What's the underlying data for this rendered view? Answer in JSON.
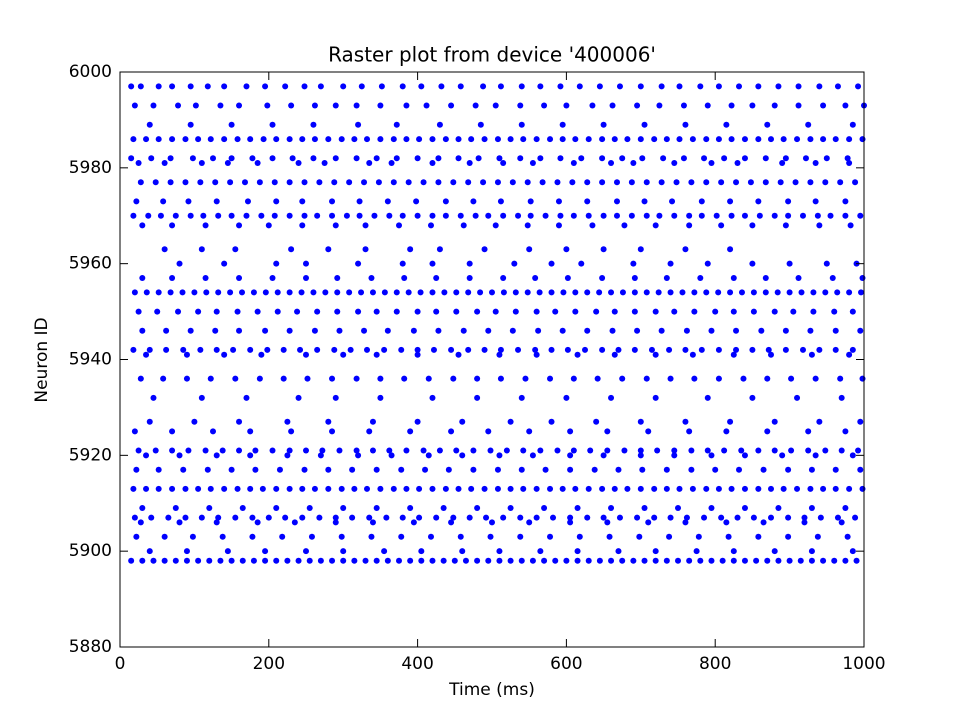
{
  "chart_data": {
    "type": "raster",
    "title": "Raster plot from device '400006'",
    "x_label": "Time (ms)",
    "y_label": "Neuron ID",
    "xlim": [
      0,
      1000
    ],
    "ylim": [
      5880,
      6000
    ],
    "xticks": [
      0,
      200,
      400,
      600,
      800,
      1000
    ],
    "yticks": [
      5880,
      5900,
      5920,
      5940,
      5960,
      5980,
      6000
    ],
    "color": "#0000ff",
    "rows": [
      {
        "neuron": 5997,
        "times": [
          15,
          28,
          52,
          70,
          95,
          118,
          140,
          170,
          195,
          222,
          248,
          270,
          300,
          325,
          352,
          380,
          405,
          432,
          458,
          488,
          512,
          540,
          565,
          592,
          618,
          645,
          672,
          700,
          728,
          752,
          780,
          805,
          832,
          858,
          885,
          912,
          940,
          965,
          992
        ]
      },
      {
        "neuron": 5993,
        "times": [
          20,
          45,
          78,
          102,
          135,
          160,
          198,
          230,
          262,
          290,
          318,
          350,
          385,
          412,
          445,
          478,
          505,
          538,
          570,
          600,
          635,
          662,
          695,
          725,
          758,
          790,
          822,
          850,
          880,
          912,
          945,
          975,
          1000
        ]
      },
      {
        "neuron": 5989,
        "times": [
          40,
          95,
          150,
          205,
          260,
          320,
          372,
          430,
          485,
          540,
          595,
          650,
          705,
          760,
          815,
          870,
          925,
          985
        ]
      },
      {
        "neuron": 5986,
        "times": [
          18,
          35,
          52,
          70,
          88,
          105,
          122,
          140,
          158,
          175,
          193,
          210,
          228,
          245,
          262,
          280,
          298,
          315,
          332,
          350,
          368,
          385,
          402,
          420,
          438,
          455,
          472,
          490,
          508,
          525,
          542,
          560,
          578,
          595,
          612,
          630,
          648,
          665,
          682,
          700,
          718,
          735,
          752,
          770,
          788,
          805,
          822,
          840,
          858,
          875,
          892,
          910,
          928,
          945,
          962,
          980,
          998
        ]
      },
      {
        "neuron": 5982,
        "times": [
          15,
          42,
          68,
          98,
          125,
          150,
          178,
          205,
          232,
          260,
          290,
          318,
          345,
          372,
          400,
          428,
          455,
          482,
          510,
          538,
          565,
          592,
          620,
          648,
          675,
          702,
          730,
          758,
          785,
          812,
          840,
          868,
          895,
          922,
          950,
          978
        ]
      },
      {
        "neuron": 5981,
        "times": [
          25,
          60,
          110,
          145,
          185,
          240,
          275,
          335,
          365,
          420,
          470,
          515,
          555,
          610,
          660,
          690,
          745,
          795,
          830,
          890,
          935,
          980
        ]
      },
      {
        "neuron": 5977,
        "times": [
          28,
          48,
          68,
          88,
          108,
          128,
          148,
          168,
          188,
          208,
          228,
          248,
          268,
          288,
          308,
          328,
          348,
          368,
          388,
          408,
          428,
          448,
          468,
          488,
          508,
          528,
          548,
          568,
          588,
          608,
          628,
          648,
          668,
          688,
          708,
          728,
          748,
          768,
          788,
          808,
          828,
          848,
          868,
          888,
          908,
          928,
          948,
          968,
          988
        ]
      },
      {
        "neuron": 5973,
        "times": [
          22,
          58,
          92,
          130,
          172,
          210,
          245,
          285,
          322,
          360,
          398,
          438,
          475,
          512,
          552,
          590,
          628,
          668,
          705,
          742,
          782,
          820,
          858,
          898,
          935,
          975
        ]
      },
      {
        "neuron": 5970,
        "times": [
          18,
          38,
          55,
          75,
          95,
          112,
          132,
          150,
          170,
          190,
          208,
          228,
          248,
          265,
          285,
          305,
          322,
          342,
          362,
          380,
          400,
          420,
          438,
          458,
          478,
          495,
          515,
          535,
          552,
          572,
          592,
          610,
          630,
          650,
          668,
          688,
          708,
          725,
          745,
          765,
          782,
          802,
          822,
          840,
          860,
          880,
          898,
          918,
          938,
          955,
          975,
          995
        ]
      },
      {
        "neuron": 5968,
        "times": [
          30,
          70,
          115,
          160,
          200,
          245,
          290,
          330,
          375,
          418,
          462,
          505,
          548,
          590,
          635,
          678,
          720,
          765,
          808,
          850,
          895,
          940,
          982
        ]
      },
      {
        "neuron": 5963,
        "times": [
          60,
          110,
          155,
          230,
          280,
          330,
          390,
          430,
          490,
          550,
          600,
          650,
          700,
          760,
          820
        ]
      },
      {
        "neuron": 5960,
        "times": [
          80,
          140,
          210,
          250,
          320,
          380,
          420,
          470,
          530,
          580,
          620,
          690,
          740,
          790,
          850,
          900,
          950,
          990
        ]
      },
      {
        "neuron": 5957,
        "times": [
          30,
          70,
          115,
          160,
          205,
          250,
          292,
          338,
          382,
          425,
          470,
          515,
          558,
          602,
          648,
          692,
          735,
          780,
          825,
          868,
          912,
          958,
          998
        ]
      },
      {
        "neuron": 5954,
        "times": [
          20,
          36,
          52,
          68,
          84,
          100,
          116,
          132,
          148,
          164,
          180,
          196,
          212,
          228,
          244,
          260,
          276,
          292,
          308,
          324,
          340,
          356,
          372,
          388,
          404,
          420,
          436,
          452,
          468,
          484,
          500,
          516,
          532,
          548,
          564,
          580,
          596,
          612,
          628,
          644,
          660,
          676,
          692,
          708,
          724,
          740,
          756,
          772,
          788,
          804,
          820,
          836,
          852,
          868,
          884,
          900,
          916,
          932,
          948,
          964,
          980,
          996
        ]
      },
      {
        "neuron": 5950,
        "times": [
          25,
          50,
          78,
          105,
          130,
          158,
          185,
          212,
          238,
          265,
          292,
          320,
          345,
          372,
          400,
          425,
          452,
          480,
          505,
          532,
          560,
          585,
          612,
          640,
          665,
          692,
          720,
          745,
          772,
          800,
          825,
          852,
          880,
          905,
          932,
          960,
          985
        ]
      },
      {
        "neuron": 5946,
        "times": [
          30,
          62,
          95,
          128,
          160,
          195,
          228,
          262,
          295,
          328,
          360,
          395,
          428,
          462,
          495,
          528,
          562,
          595,
          628,
          662,
          695,
          728,
          762,
          795,
          828,
          862,
          895,
          928,
          962,
          995
        ]
      },
      {
        "neuron": 5942,
        "times": [
          18,
          40,
          62,
          85,
          108,
          130,
          152,
          175,
          198,
          220,
          242,
          265,
          288,
          310,
          332,
          355,
          378,
          400,
          422,
          445,
          468,
          490,
          512,
          535,
          558,
          580,
          602,
          625,
          648,
          670,
          692,
          715,
          738,
          760,
          782,
          805,
          828,
          850,
          872,
          895,
          918,
          940,
          962,
          985
        ]
      },
      {
        "neuron": 5941,
        "times": [
          35,
          90,
          140,
          190,
          250,
          300,
          345,
          400,
          455,
          510,
          560,
          615,
          665,
          720,
          770,
          825,
          875,
          930,
          980
        ]
      },
      {
        "neuron": 5936,
        "times": [
          28,
          58,
          90,
          122,
          155,
          188,
          220,
          252,
          285,
          318,
          350,
          382,
          415,
          448,
          480,
          512,
          545,
          578,
          610,
          642,
          675,
          708,
          740,
          772,
          805,
          838,
          870,
          902,
          935,
          968,
          998
        ]
      },
      {
        "neuron": 5932,
        "times": [
          45,
          110,
          170,
          240,
          290,
          350,
          420,
          480,
          540,
          600,
          660,
          720,
          790,
          850,
          910,
          970
        ]
      },
      {
        "neuron": 5927,
        "times": [
          40,
          100,
          160,
          225,
          280,
          340,
          400,
          460,
          525,
          580,
          640,
          700,
          760,
          820,
          880,
          940,
          995
        ]
      },
      {
        "neuron": 5925,
        "times": [
          20,
          70,
          125,
          175,
          230,
          285,
          335,
          390,
          445,
          495,
          550,
          605,
          655,
          710,
          765,
          815,
          870,
          925,
          975
        ]
      },
      {
        "neuron": 5921,
        "times": [
          25,
          48,
          70,
          92,
          115,
          138,
          160,
          182,
          205,
          228,
          250,
          272,
          295,
          318,
          340,
          362,
          385,
          408,
          430,
          452,
          475,
          498,
          520,
          542,
          565,
          588,
          610,
          632,
          655,
          678,
          700,
          722,
          745,
          768,
          790,
          812,
          835,
          858,
          880,
          902,
          925,
          948,
          970,
          992
        ]
      },
      {
        "neuron": 5920,
        "times": [
          35,
          80,
          130,
          175,
          225,
          270,
          320,
          365,
          415,
          460,
          510,
          555,
          605,
          650,
          700,
          745,
          795,
          840,
          890,
          935,
          985
        ]
      },
      {
        "neuron": 5917,
        "times": [
          22,
          52,
          85,
          118,
          150,
          182,
          215,
          248,
          280,
          312,
          345,
          378,
          410,
          442,
          475,
          508,
          540,
          572,
          605,
          638,
          670,
          702,
          735,
          768,
          800,
          832,
          865,
          898,
          930,
          962,
          995
        ]
      },
      {
        "neuron": 5913,
        "times": [
          18,
          35,
          52,
          70,
          88,
          105,
          122,
          140,
          158,
          175,
          192,
          210,
          228,
          245,
          262,
          280,
          298,
          315,
          332,
          350,
          368,
          385,
          402,
          420,
          438,
          455,
          472,
          490,
          508,
          525,
          542,
          560,
          578,
          595,
          612,
          630,
          648,
          665,
          682,
          700,
          718,
          735,
          752,
          770,
          788,
          805,
          822,
          840,
          858,
          875,
          892,
          910,
          928,
          945,
          962,
          980,
          998
        ]
      },
      {
        "neuron": 5909,
        "times": [
          30,
          75,
          120,
          165,
          210,
          255,
          300,
          345,
          390,
          435,
          480,
          525,
          570,
          615,
          660,
          705,
          750,
          795,
          840,
          885,
          930,
          975
        ]
      },
      {
        "neuron": 5907,
        "times": [
          20,
          42,
          65,
          88,
          110,
          132,
          155,
          178,
          200,
          222,
          245,
          268,
          290,
          312,
          335,
          358,
          380,
          402,
          425,
          448,
          470,
          492,
          515,
          538,
          560,
          582,
          605,
          628,
          650,
          672,
          695,
          718,
          740,
          762,
          785,
          808,
          830,
          852,
          875,
          898,
          920,
          942,
          965,
          988
        ]
      },
      {
        "neuron": 5906,
        "times": [
          28,
          80,
          130,
          185,
          235,
          290,
          340,
          395,
          445,
          500,
          550,
          605,
          655,
          710,
          760,
          815,
          865,
          920,
          970
        ]
      },
      {
        "neuron": 5903,
        "times": [
          22,
          60,
          98,
          138,
          178,
          218,
          258,
          298,
          338,
          378,
          418,
          458,
          498,
          538,
          578,
          618,
          658,
          698,
          738,
          778,
          818,
          858,
          898,
          938,
          978
        ]
      },
      {
        "neuron": 5900,
        "times": [
          40,
          90,
          145,
          195,
          250,
          300,
          355,
          405,
          460,
          510,
          565,
          615,
          670,
          720,
          775,
          825,
          880,
          930,
          985
        ]
      },
      {
        "neuron": 5898,
        "times": [
          15,
          30,
          45,
          60,
          75,
          90,
          105,
          120,
          135,
          150,
          165,
          180,
          195,
          210,
          225,
          240,
          255,
          270,
          285,
          300,
          315,
          330,
          345,
          360,
          375,
          390,
          405,
          420,
          435,
          450,
          465,
          480,
          495,
          510,
          525,
          540,
          555,
          570,
          585,
          600,
          615,
          630,
          645,
          660,
          675,
          690,
          705,
          720,
          735,
          750,
          765,
          780,
          795,
          810,
          825,
          840,
          855,
          870,
          885,
          900,
          915,
          930,
          945,
          960,
          975,
          990
        ]
      }
    ]
  }
}
